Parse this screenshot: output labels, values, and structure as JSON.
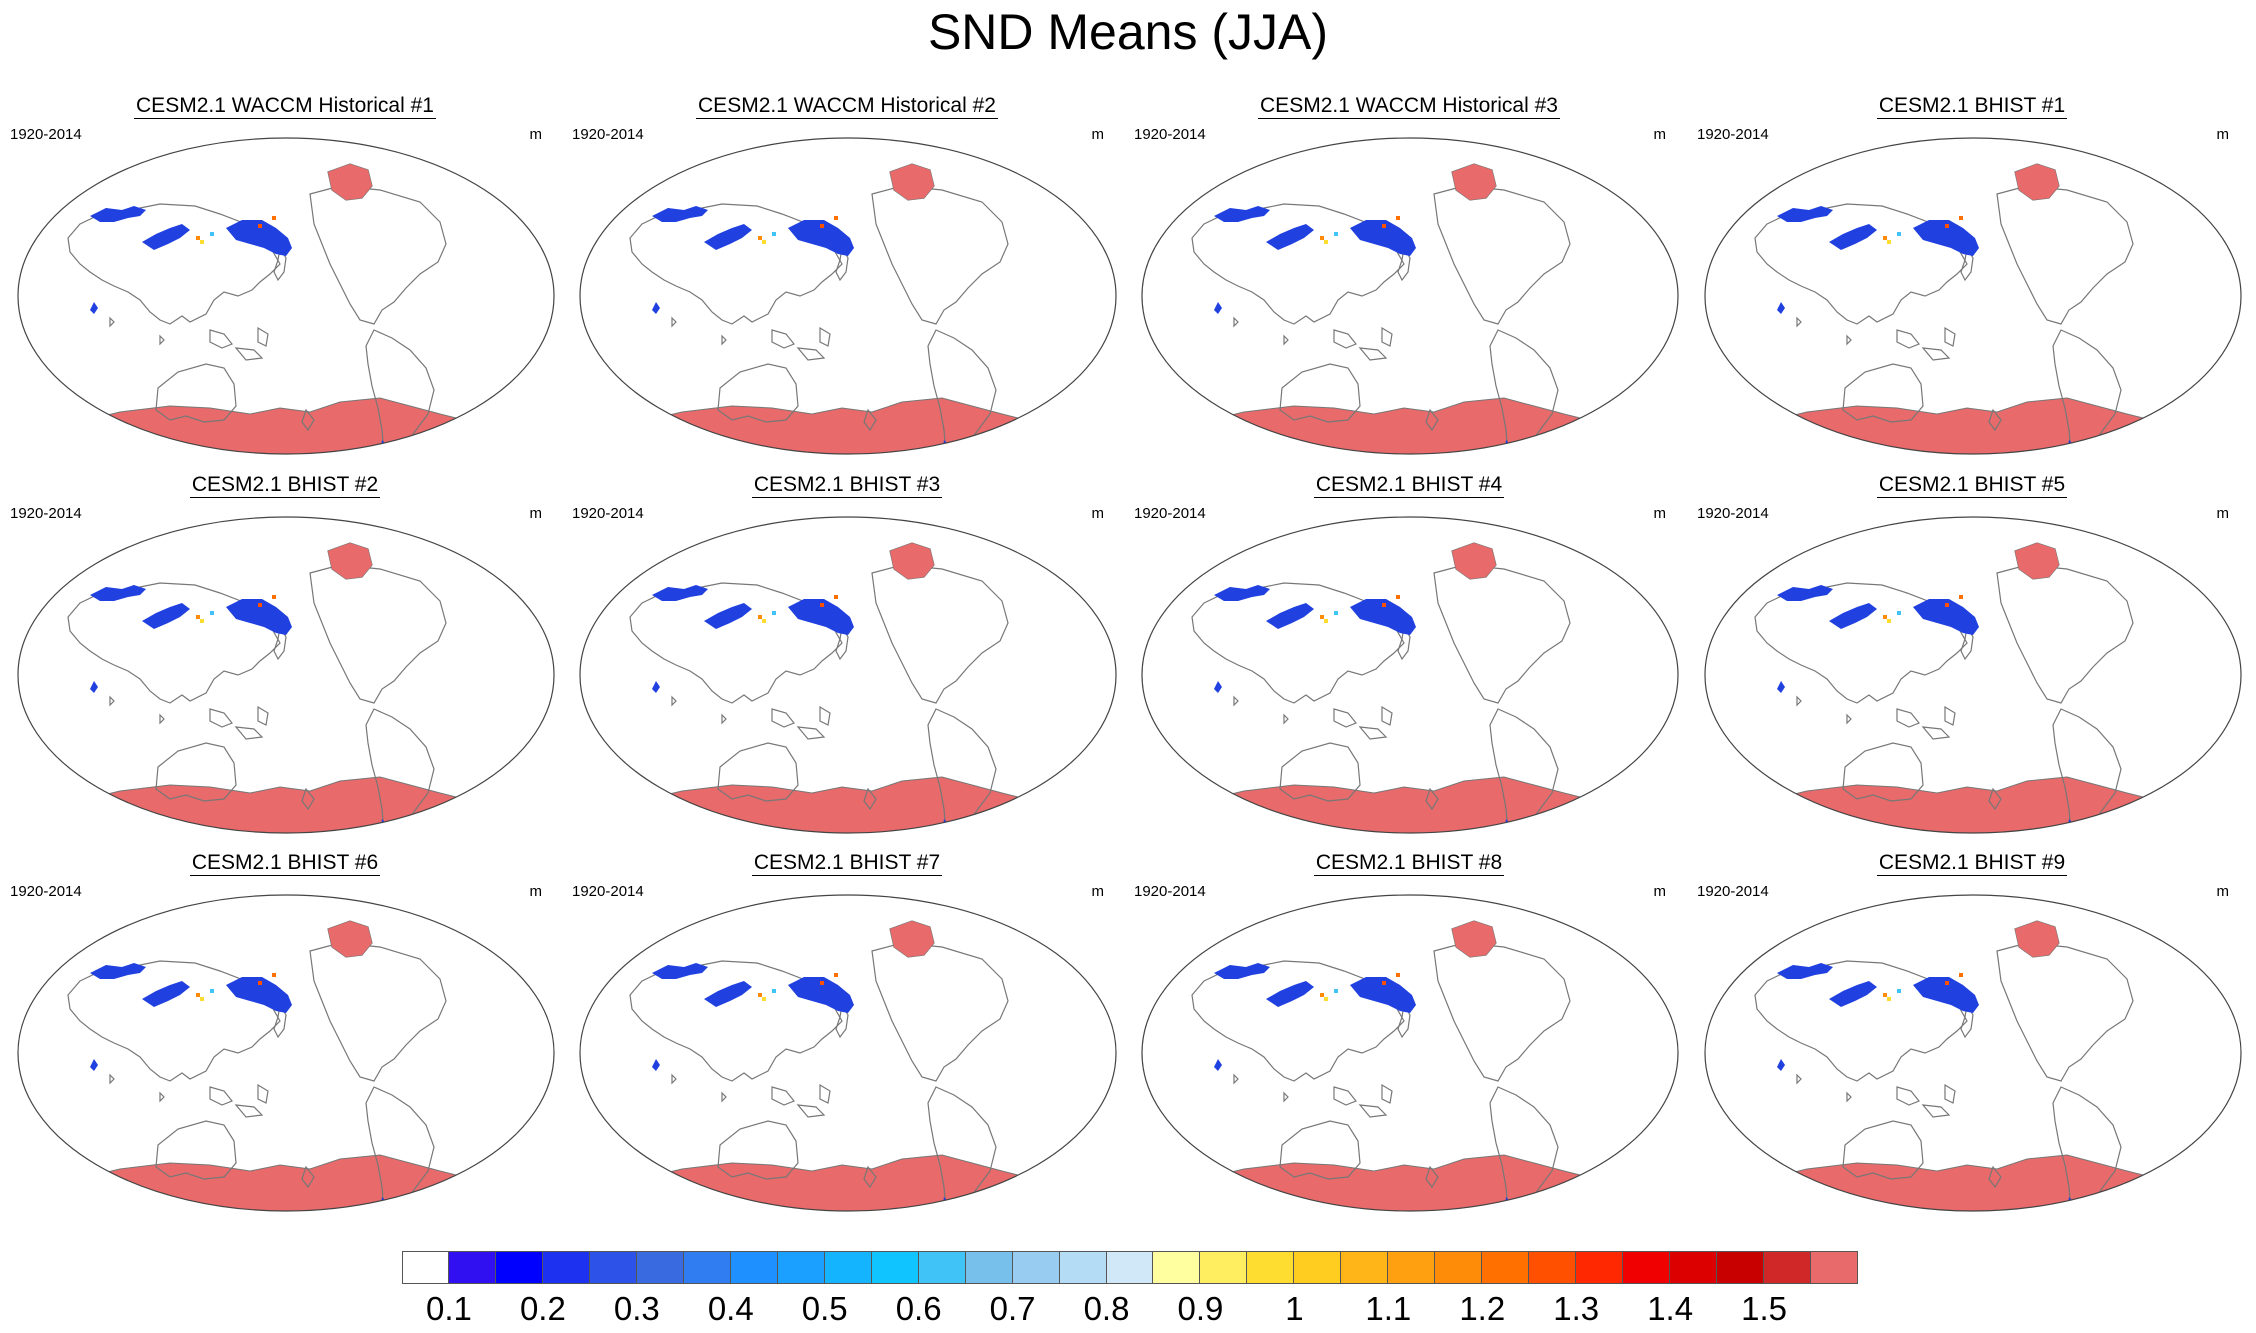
{
  "title": "SND Means (JJA)",
  "panels": [
    {
      "title": "CESM2.1 WACCM Historical #1",
      "left": "1920-2014",
      "right": "m"
    },
    {
      "title": "CESM2.1 WACCM Historical #2",
      "left": "1920-2014",
      "right": "m"
    },
    {
      "title": "CESM2.1 WACCM Historical #3",
      "left": "1920-2014",
      "right": "m"
    },
    {
      "title": "CESM2.1 BHIST #1",
      "left": "1920-2014",
      "right": "m"
    },
    {
      "title": "CESM2.1 BHIST #2",
      "left": "1920-2014",
      "right": "m"
    },
    {
      "title": "CESM2.1 BHIST #3",
      "left": "1920-2014",
      "right": "m"
    },
    {
      "title": "CESM2.1 BHIST #4",
      "left": "1920-2014",
      "right": "m"
    },
    {
      "title": "CESM2.1 BHIST #5",
      "left": "1920-2014",
      "right": "m"
    },
    {
      "title": "CESM2.1 BHIST #6",
      "left": "1920-2014",
      "right": "m"
    },
    {
      "title": "CESM2.1 BHIST #7",
      "left": "1920-2014",
      "right": "m"
    },
    {
      "title": "CESM2.1 BHIST #8",
      "left": "1920-2014",
      "right": "m"
    },
    {
      "title": "CESM2.1 BHIST #9",
      "left": "1920-2014",
      "right": "m"
    }
  ],
  "colorbar": {
    "labels": [
      "0.1",
      "0.2",
      "0.3",
      "0.4",
      "0.5",
      "0.6",
      "0.7",
      "0.8",
      "0.9",
      "1",
      "1.1",
      "1.2",
      "1.3",
      "1.4",
      "1.5"
    ],
    "colors": [
      "#ffffff",
      "#3010f0",
      "#0000ff",
      "#1c32f0",
      "#2d52e8",
      "#3a6ae0",
      "#2f7df0",
      "#1e90ff",
      "#1ca0ff",
      "#14b4ff",
      "#10c4ff",
      "#40c4f8",
      "#78c0ec",
      "#98ccf0",
      "#b4dcf4",
      "#d0e8f8",
      "#ffffa0",
      "#ffee60",
      "#ffdc30",
      "#ffcc20",
      "#ffb418",
      "#ffa010",
      "#ff8c08",
      "#ff7000",
      "#ff5000",
      "#ff2800",
      "#f00000",
      "#dc0000",
      "#c80000",
      "#d02828",
      "#e86a6a"
    ]
  },
  "map_colors": {
    "snow_low": "#2040e0",
    "snow_high": "#e86a6a",
    "coast": "#777777"
  }
}
